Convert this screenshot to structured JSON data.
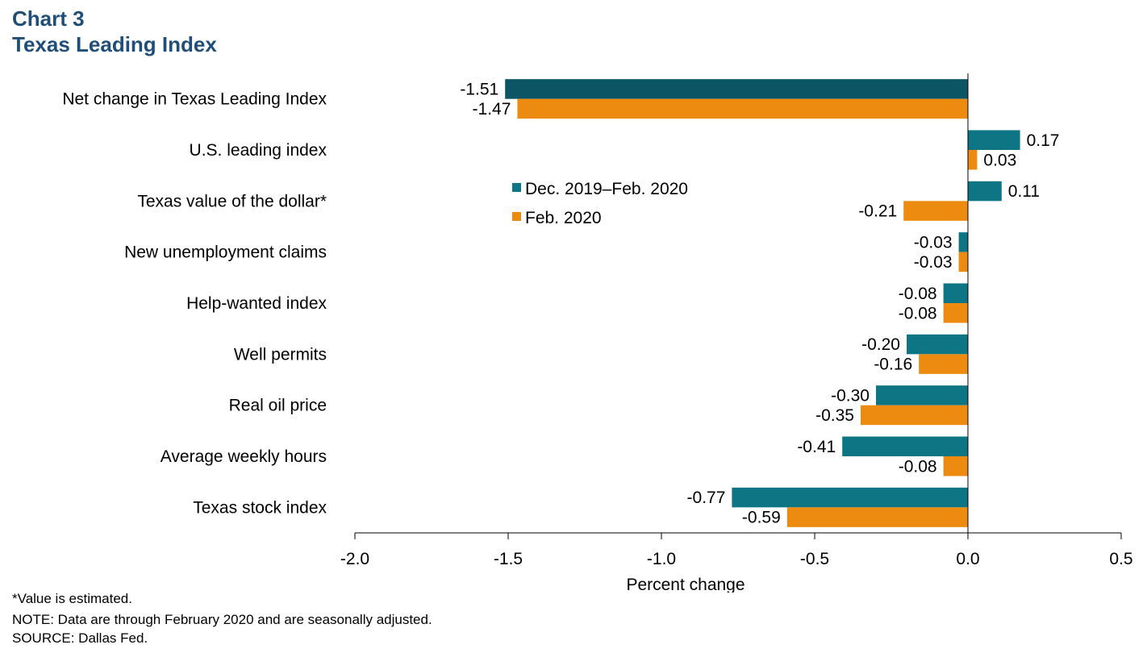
{
  "header": {
    "chart_number": "Chart 3",
    "title": "Texas Leading Index"
  },
  "notes": {
    "estimate": "*Value is estimated.",
    "note": "NOTE: Data are through February 2020 and are seasonally adjusted.",
    "source": "SOURCE: Dallas Fed."
  },
  "chart_data": {
    "type": "bar",
    "orientation": "horizontal",
    "title": "Texas Leading Index",
    "xlabel": "Percent change",
    "ylabel": "",
    "xlim": [
      -2.0,
      0.5
    ],
    "xticks": [
      "-2.0",
      "-1.5",
      "-1.0",
      "-0.5",
      "0.0",
      "0.5"
    ],
    "xtick_values": [
      -2.0,
      -1.5,
      -1.0,
      -0.5,
      0.0,
      0.5
    ],
    "grid": false,
    "legend_position": "upper-middle",
    "categories": [
      "Net change in Texas Leading Index",
      "U.S. leading index",
      "Texas value of the dollar*",
      "New unemployment claims",
      "Help-wanted index",
      "Well permits",
      "Real oil price",
      "Average weekly hours",
      "Texas stock index"
    ],
    "series": [
      {
        "name": "Dec. 2019–Feb. 2020",
        "color": "#0e7585",
        "first_bar_color": "#0b5565",
        "values": [
          -1.51,
          0.17,
          0.11,
          -0.03,
          -0.08,
          -0.2,
          -0.3,
          -0.41,
          -0.77
        ],
        "labels": [
          "-1.51",
          "0.17",
          "0.11",
          "-0.03",
          "-0.08",
          "-0.20",
          "-0.30",
          "-0.41",
          "-0.77"
        ]
      },
      {
        "name": "Feb. 2020",
        "color": "#ec8b0f",
        "values": [
          -1.47,
          0.03,
          -0.21,
          -0.03,
          -0.08,
          -0.16,
          -0.35,
          -0.08,
          -0.59
        ],
        "labels": [
          "-1.47",
          "0.03",
          "-0.21",
          "-0.03",
          "-0.08",
          "-0.16",
          "-0.35",
          "-0.08",
          "-0.59"
        ]
      }
    ]
  }
}
